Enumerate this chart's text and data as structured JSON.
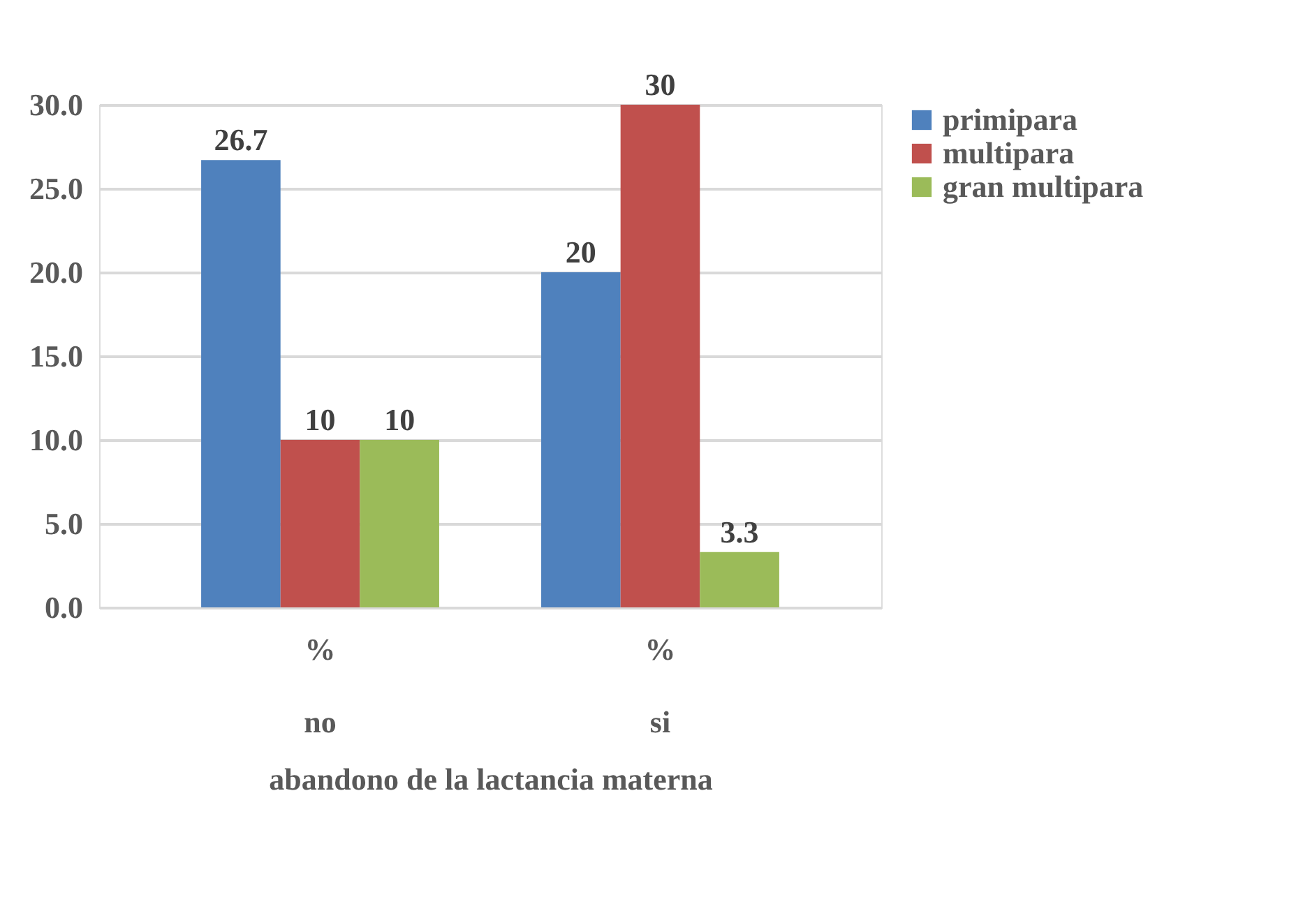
{
  "chart_data": {
    "type": "bar",
    "xlabel": "abandono de la lactancia materna",
    "categories": [
      "%\nno",
      "%\nsi"
    ],
    "series": [
      {
        "name": "primipara",
        "color": "#4f81bd",
        "values": [
          26.7,
          20
        ]
      },
      {
        "name": "multipara",
        "color": "#c0504d",
        "values": [
          10,
          30
        ]
      },
      {
        "name": "gran multipara",
        "color": "#9bbb59",
        "values": [
          10,
          3.3
        ]
      }
    ],
    "ylim": [
      0,
      30
    ],
    "yticks": [
      {
        "value": 0,
        "label": "0.0"
      },
      {
        "value": 5,
        "label": "5.0"
      },
      {
        "value": 10,
        "label": "10.0"
      },
      {
        "value": 15,
        "label": "15.0"
      },
      {
        "value": 20,
        "label": "20.0"
      },
      {
        "value": 25,
        "label": "25.0"
      },
      {
        "value": 30,
        "label": "30.0"
      }
    ],
    "grid": "y",
    "legend": "right",
    "data_labels": true
  }
}
